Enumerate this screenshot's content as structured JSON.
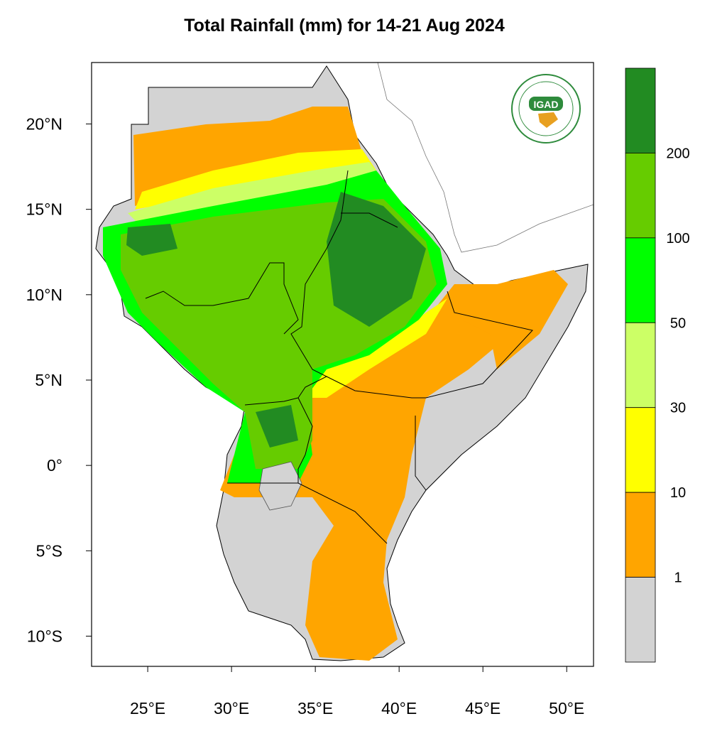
{
  "map": {
    "title": "Total Rainfall (mm) for 14-21 Aug 2024",
    "logo_text": "IGAD",
    "xlim": [
      21.65,
      51.6
    ],
    "ylim": [
      -11.77,
      23.6
    ],
    "xticks": [
      {
        "value": 25,
        "label": "25°E"
      },
      {
        "value": 30,
        "label": "30°E"
      },
      {
        "value": 35,
        "label": "35°E"
      },
      {
        "value": 40,
        "label": "40°E"
      },
      {
        "value": 45,
        "label": "45°E"
      },
      {
        "value": 50,
        "label": "50°E"
      }
    ],
    "yticks": [
      {
        "value": 20,
        "label": "20°N"
      },
      {
        "value": 15,
        "label": "15°N"
      },
      {
        "value": 10,
        "label": "10°N"
      },
      {
        "value": 5,
        "label": "5°N"
      },
      {
        "value": 0,
        "label": "0°"
      },
      {
        "value": -5,
        "label": "5°S"
      },
      {
        "value": -10,
        "label": "10°S"
      }
    ],
    "legend": {
      "levels": [
        200,
        100,
        50,
        30,
        10,
        1
      ],
      "colors": [
        "#228b22",
        "#66cc00",
        "#00ff00",
        "#ccff66",
        "#ffff00",
        "#ffa500",
        "#d3d3d3"
      ]
    }
  }
}
